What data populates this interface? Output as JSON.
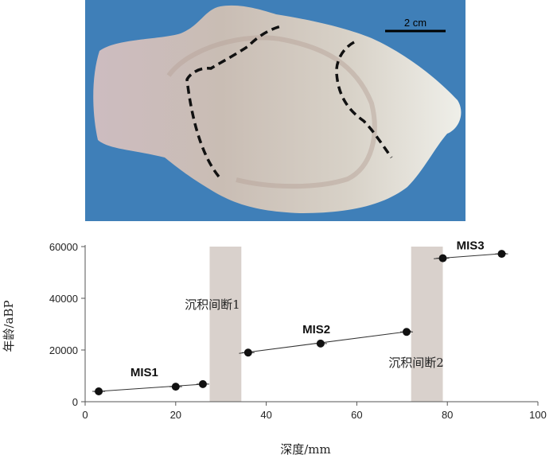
{
  "photo": {
    "scale_bar_label": "2 cm",
    "background_color": "#3f7fb8"
  },
  "chart_data": {
    "type": "line",
    "xlabel": "深度/mm",
    "ylabel": "年龄/aBP",
    "xlim": [
      0,
      100
    ],
    "ylim": [
      0,
      60000
    ],
    "x_ticks": [
      0,
      20,
      40,
      60,
      80,
      100
    ],
    "y_ticks": [
      0,
      20000,
      40000,
      60000
    ],
    "x_tick_labels": [
      "0",
      "20",
      "40",
      "60",
      "80",
      "100"
    ],
    "y_tick_labels": [
      "0",
      "20000",
      "40000",
      "60000"
    ],
    "grid": false,
    "series": [
      {
        "name": "MIS1",
        "points": [
          [
            3,
            4000
          ],
          [
            20,
            5800
          ],
          [
            26,
            6800
          ]
        ],
        "fit": [
          [
            2,
            3900
          ],
          [
            27,
            6900
          ]
        ]
      },
      {
        "name": "MIS2",
        "points": [
          [
            36,
            19000
          ],
          [
            52,
            22500
          ],
          [
            71,
            27000
          ]
        ],
        "fit": [
          [
            34,
            18700
          ],
          [
            72,
            27300
          ]
        ]
      },
      {
        "name": "MIS3",
        "points": [
          [
            79,
            55500
          ],
          [
            92,
            57200
          ]
        ],
        "fit": [
          [
            77,
            55300
          ],
          [
            93,
            57400
          ]
        ]
      }
    ],
    "series_label_positions": [
      [
        10,
        9800
      ],
      [
        48,
        26500
      ],
      [
        82,
        59000
      ]
    ],
    "hiatuses": [
      {
        "label": "沉积间断1",
        "x_start": 27.5,
        "x_end": 34.5,
        "label_pos": [
          22,
          36000
        ]
      },
      {
        "label": "沉积间断2",
        "x_start": 72,
        "x_end": 79,
        "label_pos": [
          67,
          13500
        ]
      }
    ],
    "colors": {
      "points": "#111111",
      "lines": "#333333",
      "hiatus": "#d9d1cc"
    }
  }
}
